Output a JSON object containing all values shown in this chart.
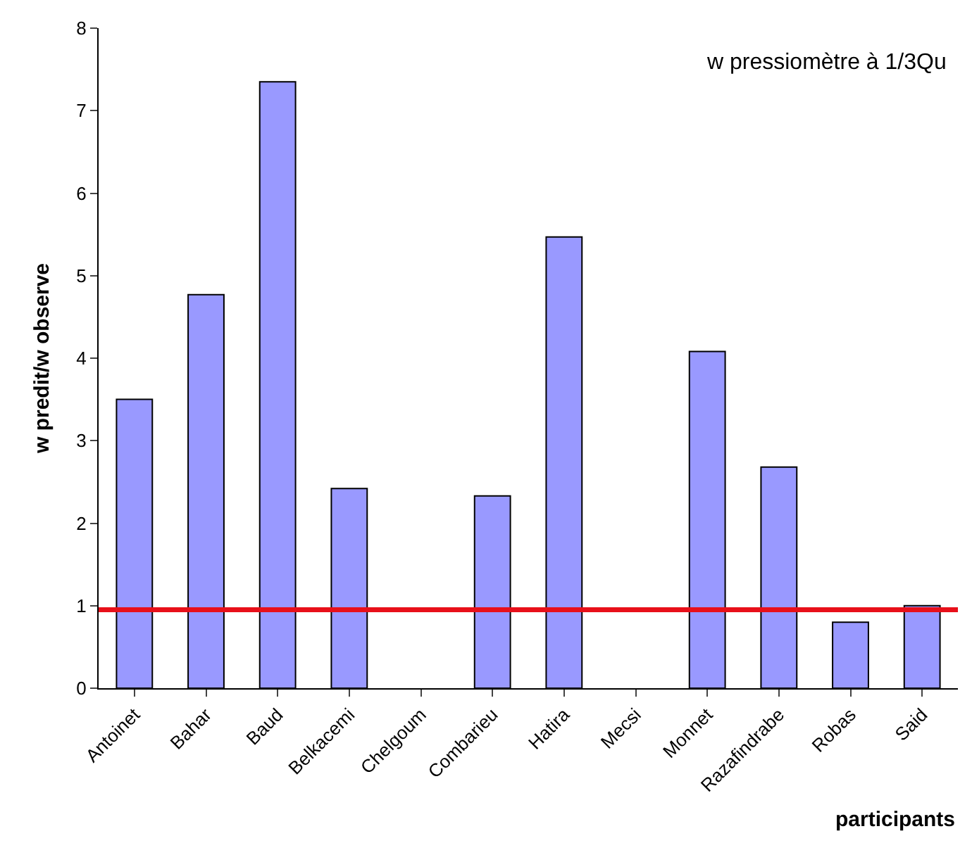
{
  "chart_data": {
    "type": "bar",
    "title": "w pressiomètre à 1/3Qu",
    "xlabel": "participants",
    "ylabel": "w predit/w observe",
    "categories": [
      "Antoinet",
      "Bahar",
      "Baud",
      "Belkacemi",
      "Chelgoum",
      "Combarieu",
      "Hatira",
      "Mecsi",
      "Monnet",
      "Razafindrabe",
      "Robas",
      "Said"
    ],
    "values": [
      3.5,
      4.77,
      7.35,
      2.42,
      null,
      2.33,
      5.47,
      null,
      4.08,
      2.68,
      0.8,
      1.0
    ],
    "color": "#9999ff",
    "ylim": [
      0,
      8
    ],
    "yticks": [
      0,
      1,
      2,
      3,
      4,
      5,
      6,
      7,
      8
    ],
    "legend": false,
    "ref_lines": [
      {
        "axis": "y",
        "value": 0.95,
        "color": "#e8101a",
        "line_style": "solid"
      }
    ]
  }
}
